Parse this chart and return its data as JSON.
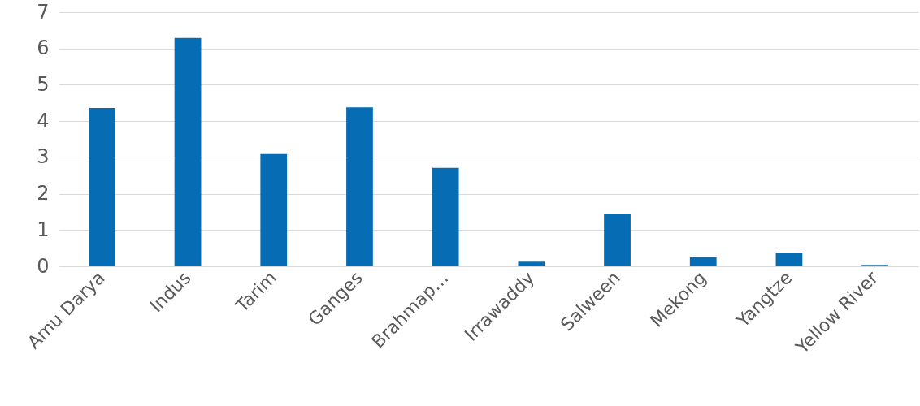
{
  "chart_data": {
    "type": "bar",
    "categories": [
      "Amu Darya",
      "Indus",
      "Tarim",
      "Ganges",
      "Brahmap…",
      "Irrawaddy",
      "Salween",
      "Mekong",
      "Yangtze",
      "Yellow River"
    ],
    "values": [
      4.36,
      6.29,
      3.09,
      4.38,
      2.71,
      0.13,
      1.43,
      0.25,
      0.38,
      0.04
    ],
    "color": "#066cb4",
    "ylim": [
      0,
      7
    ],
    "yticks": [
      0,
      1,
      2,
      3,
      4,
      5,
      6,
      7
    ],
    "grid": "y",
    "legend": false
  }
}
